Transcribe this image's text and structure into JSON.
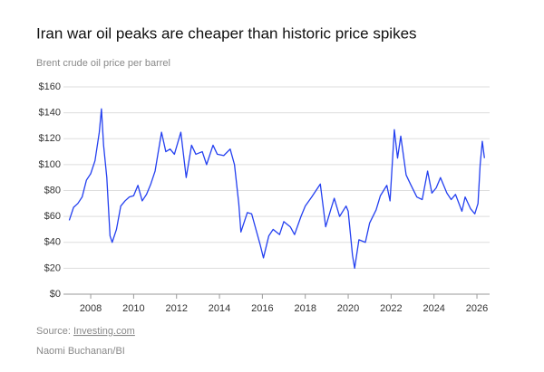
{
  "chart_data": {
    "type": "line",
    "title": "Iran war oil peaks are cheaper than historic price spikes",
    "subtitle": "Brent crude oil price per barrel",
    "source_prefix": "Source:",
    "source_link": "Investing.com",
    "credit": "Naomi Buchanan/BI",
    "color": "#2440f0",
    "grid": true,
    "x": [
      2007.0,
      2007.2,
      2007.4,
      2007.6,
      2007.8,
      2008.0,
      2008.2,
      2008.4,
      2008.5,
      2008.6,
      2008.75,
      2008.9,
      2009.0,
      2009.2,
      2009.4,
      2009.6,
      2009.8,
      2010.0,
      2010.2,
      2010.4,
      2010.6,
      2010.8,
      2011.0,
      2011.3,
      2011.5,
      2011.7,
      2011.9,
      2012.2,
      2012.45,
      2012.7,
      2012.9,
      2013.2,
      2013.4,
      2013.7,
      2013.9,
      2014.2,
      2014.5,
      2014.7,
      2014.9,
      2015.0,
      2015.3,
      2015.5,
      2015.75,
      2015.9,
      2016.05,
      2016.3,
      2016.5,
      2016.8,
      2017.0,
      2017.3,
      2017.5,
      2017.8,
      2018.0,
      2018.3,
      2018.7,
      2018.95,
      2019.2,
      2019.35,
      2019.6,
      2019.9,
      2020.0,
      2020.2,
      2020.3,
      2020.5,
      2020.8,
      2021.0,
      2021.3,
      2021.5,
      2021.8,
      2021.95,
      2022.15,
      2022.3,
      2022.45,
      2022.7,
      2022.9,
      2023.2,
      2023.45,
      2023.7,
      2023.9,
      2024.1,
      2024.3,
      2024.6,
      2024.8,
      2025.0,
      2025.3,
      2025.45,
      2025.7,
      2025.9,
      2026.05,
      2026.15,
      2026.25,
      2026.35
    ],
    "values": [
      57,
      67,
      70,
      75,
      88,
      93,
      103,
      125,
      143,
      115,
      90,
      45,
      40,
      50,
      68,
      72,
      75,
      76,
      84,
      72,
      77,
      85,
      95,
      125,
      110,
      112,
      108,
      125,
      90,
      115,
      108,
      110,
      100,
      115,
      108,
      107,
      112,
      100,
      70,
      48,
      63,
      62,
      47,
      38,
      28,
      45,
      50,
      46,
      56,
      52,
      46,
      60,
      68,
      75,
      85,
      52,
      66,
      74,
      60,
      68,
      64,
      30,
      20,
      42,
      40,
      55,
      65,
      76,
      84,
      72,
      127,
      105,
      122,
      92,
      85,
      75,
      73,
      95,
      78,
      82,
      90,
      78,
      73,
      77,
      64,
      75,
      66,
      62,
      70,
      100,
      118,
      105
    ],
    "xlim": [
      2006.73,
      2026.59
    ],
    "xticks": [
      2008,
      2010,
      2012,
      2014,
      2016,
      2018,
      2020,
      2022,
      2024,
      2026
    ],
    "ylim": [
      0,
      160
    ],
    "yticks": [
      {
        "value": 0,
        "label": "$0"
      },
      {
        "value": 20,
        "label": "$20"
      },
      {
        "value": 40,
        "label": "$40"
      },
      {
        "value": 60,
        "label": "$60"
      },
      {
        "value": 80,
        "label": "$80"
      },
      {
        "value": 100,
        "label": "$100"
      },
      {
        "value": 120,
        "label": "$120"
      },
      {
        "value": 140,
        "label": "$140"
      },
      {
        "value": 160,
        "label": "$160"
      }
    ]
  }
}
